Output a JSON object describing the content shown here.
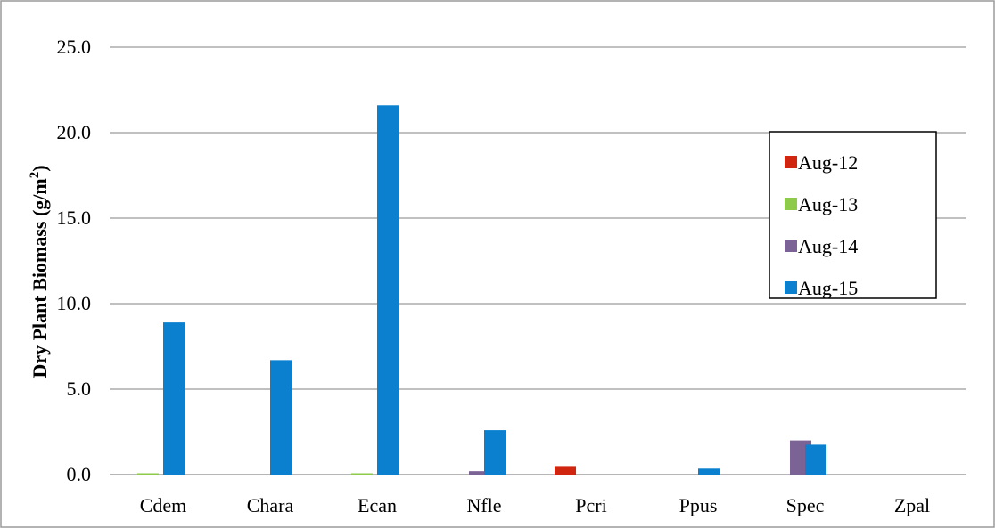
{
  "chart_data": {
    "type": "bar",
    "title": "",
    "xlabel": "",
    "ylabel": "Dry Plant Biomass (g/m",
    "ylabel_sup": "2",
    "ylabel_close": ")",
    "ylim": [
      0,
      25
    ],
    "yticks": [
      0,
      5,
      10,
      15,
      20,
      25
    ],
    "ytick_labels": [
      "0.0",
      "5.0",
      "10.0",
      "15.0",
      "20.0",
      "25.0"
    ],
    "grid": true,
    "legend_position": "top-right",
    "categories": [
      "Cdem",
      "Chara",
      "Ecan",
      "Nfle",
      "Pcri",
      "Ppus",
      "Spec",
      "Zpal"
    ],
    "series": [
      {
        "name": "Aug-12",
        "color": "#d0250f",
        "values": [
          0,
          0,
          0,
          0,
          0.5,
          0,
          0,
          0
        ]
      },
      {
        "name": "Aug-13",
        "color": "#8ecb4a",
        "values": [
          0.05,
          0,
          0.05,
          0,
          0,
          0,
          0,
          0
        ]
      },
      {
        "name": "Aug-14",
        "color": "#7b6396",
        "values": [
          0,
          0,
          0,
          0.2,
          0,
          0,
          2.0,
          0
        ]
      },
      {
        "name": "Aug-15",
        "color": "#0a80cf",
        "values": [
          8.9,
          6.7,
          21.6,
          2.6,
          0,
          0.35,
          1.75,
          0
        ]
      }
    ]
  }
}
